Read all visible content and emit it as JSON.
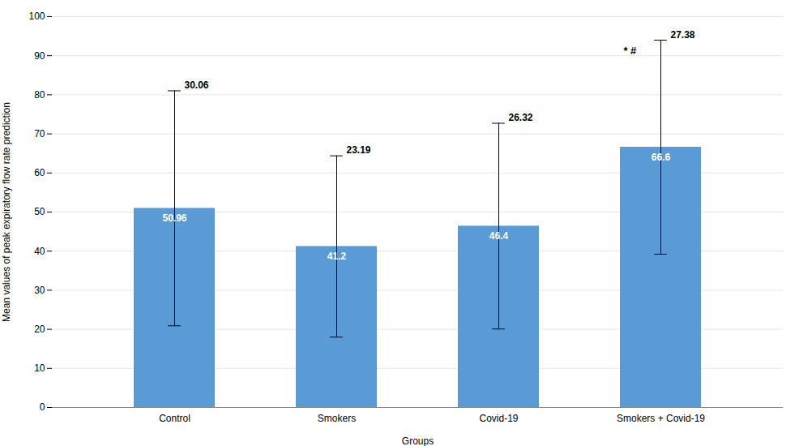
{
  "chart_data": {
    "type": "bar",
    "categories": [
      "Control",
      "Smokers",
      "Covid-19",
      "Smokers + Covid-19"
    ],
    "values": [
      50.96,
      41.2,
      46.4,
      66.6
    ],
    "errors": [
      30.06,
      23.19,
      26.32,
      27.38
    ],
    "color": "#5b9bd5",
    "xlabel": "Groups",
    "ylabel": "Mean values of peak expiratory flow rate prediction",
    "ylim": [
      0,
      100
    ],
    "yticks": [
      0,
      10,
      20,
      30,
      40,
      50,
      60,
      70,
      80,
      90,
      100
    ],
    "grid": true,
    "data_labels": true,
    "annotations": [
      {
        "text": "* #",
        "category": "Smokers + Covid-19"
      }
    ]
  }
}
